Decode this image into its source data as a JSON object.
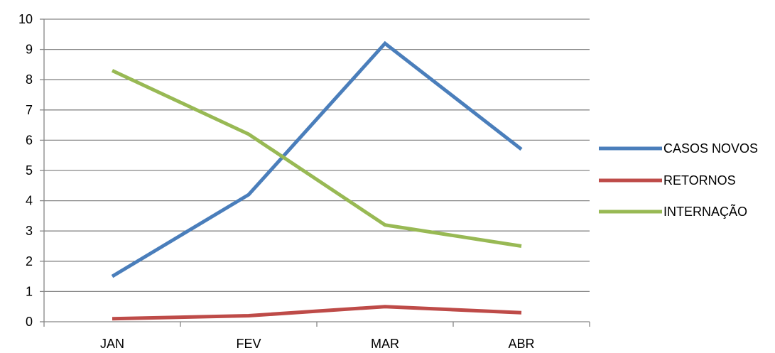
{
  "chart_data": {
    "type": "line",
    "categories": [
      "JAN",
      "FEV",
      "MAR",
      "ABR"
    ],
    "ylim": [
      0,
      10
    ],
    "yticks": [
      0,
      1,
      2,
      3,
      4,
      5,
      6,
      7,
      8,
      9,
      10
    ],
    "grid": true,
    "legend_position": "right",
    "series": [
      {
        "name": "CASOS NOVOS",
        "color": "#4a7ebb",
        "values": [
          1.5,
          4.2,
          9.2,
          5.7
        ]
      },
      {
        "name": "RETORNOS",
        "color": "#be4b48",
        "values": [
          0.1,
          0.2,
          0.5,
          0.3
        ]
      },
      {
        "name": "INTERNAÇÃO",
        "color": "#98b954",
        "values": [
          8.3,
          6.2,
          3.2,
          2.5
        ]
      }
    ]
  }
}
